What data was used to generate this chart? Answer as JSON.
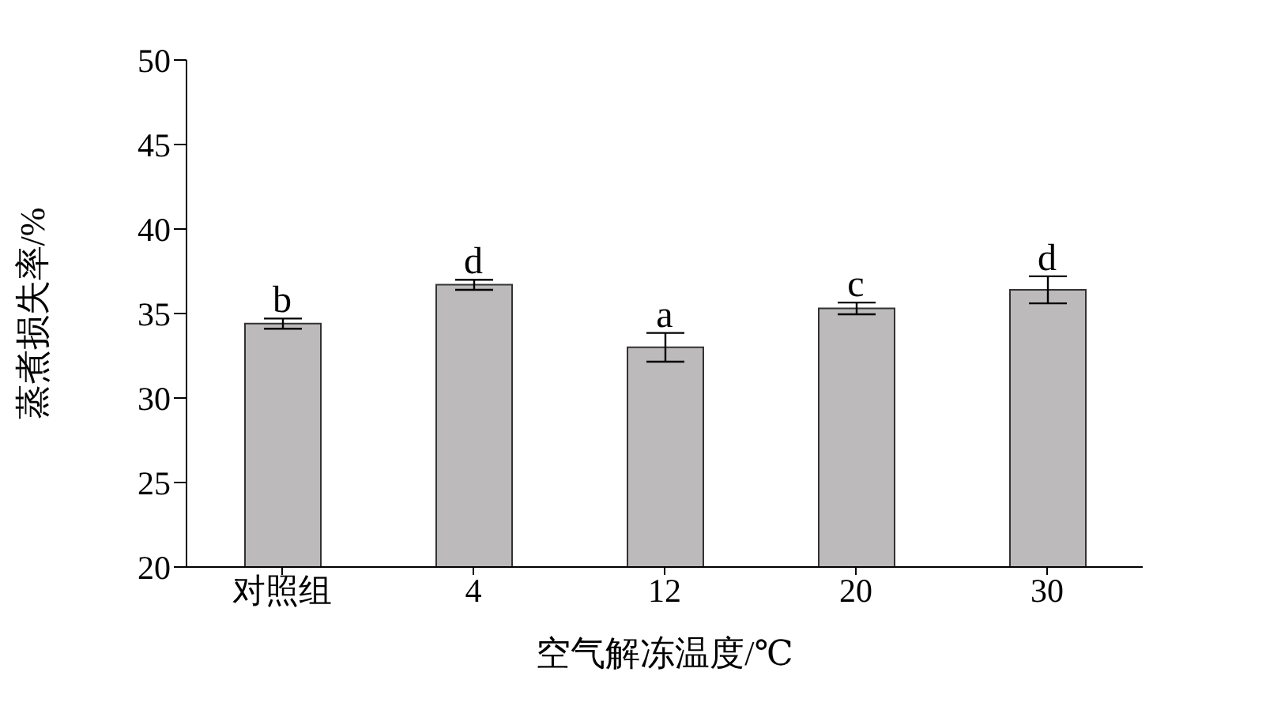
{
  "chart_data": {
    "type": "bar",
    "xlabel": "空气解冻温度/℃",
    "ylabel": "蒸煮损失率/%",
    "categories": [
      "对照组",
      "4",
      "12",
      "20",
      "30"
    ],
    "values": [
      34.4,
      36.7,
      33.0,
      35.3,
      36.4
    ],
    "errors": [
      0.3,
      0.3,
      0.85,
      0.35,
      0.8
    ],
    "color": "#bcbabb",
    "ylim": [
      20,
      50
    ],
    "yticks": [
      20,
      25,
      30,
      35,
      40,
      45,
      50
    ],
    "grid": false,
    "legend": false,
    "annotations": [
      {
        "text": "b",
        "x": "对照组",
        "y": 34.7
      },
      {
        "text": "d",
        "x": "4",
        "y": 37.0
      },
      {
        "text": "a",
        "x": "12",
        "y": 33.85
      },
      {
        "text": "c",
        "x": "20",
        "y": 35.65
      },
      {
        "text": "d",
        "x": "30",
        "y": 37.2
      }
    ]
  }
}
